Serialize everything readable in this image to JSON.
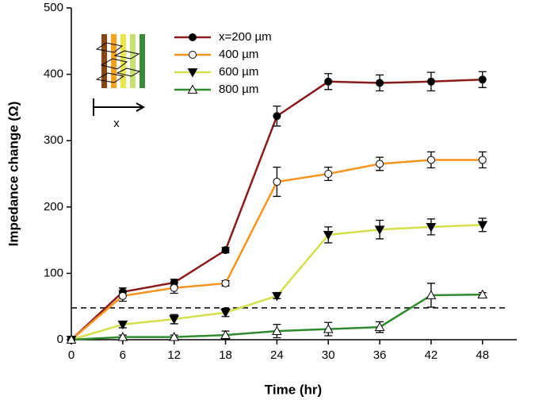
{
  "chart_data": {
    "type": "line",
    "xlabel": "Time (hr)",
    "ylabel": "Impedance change (Ω)",
    "xlim": [
      0,
      52
    ],
    "xticks": [
      0,
      6,
      12,
      18,
      24,
      30,
      36,
      42,
      48
    ],
    "ylim": [
      0,
      500
    ],
    "yticks": [
      0,
      100,
      200,
      300,
      400,
      500
    ],
    "threshold": 48,
    "inset_label": "x",
    "x": [
      0,
      6,
      12,
      18,
      24,
      30,
      36,
      42,
      48
    ],
    "series": [
      {
        "name": "x=200 µm",
        "color": "#8b1a1a",
        "marker": "circle-filled",
        "values": [
          0,
          72,
          86,
          135,
          337,
          389,
          387,
          389,
          392
        ],
        "errors": [
          0,
          6,
          5,
          4,
          15,
          12,
          12,
          14,
          12
        ]
      },
      {
        "name": "400 µm",
        "color": "#f7941d",
        "marker": "circle-open",
        "values": [
          0,
          66,
          78,
          85,
          238,
          250,
          265,
          271,
          271
        ],
        "errors": [
          0,
          8,
          8,
          4,
          22,
          10,
          10,
          12,
          12
        ]
      },
      {
        "name": "600 µm",
        "color": "#d4df4a",
        "marker": "triangle-down-filled",
        "values": [
          0,
          23,
          31,
          41,
          66,
          158,
          166,
          170,
          173
        ],
        "errors": [
          0,
          5,
          7,
          6,
          4,
          12,
          14,
          12,
          10
        ]
      },
      {
        "name": "800 µm",
        "color": "#2e8b2e",
        "marker": "triangle-up-open",
        "values": [
          0,
          4,
          4,
          7,
          13,
          16,
          19,
          67,
          68
        ],
        "errors": [
          0,
          3,
          3,
          6,
          10,
          10,
          8,
          18,
          3
        ]
      }
    ]
  }
}
